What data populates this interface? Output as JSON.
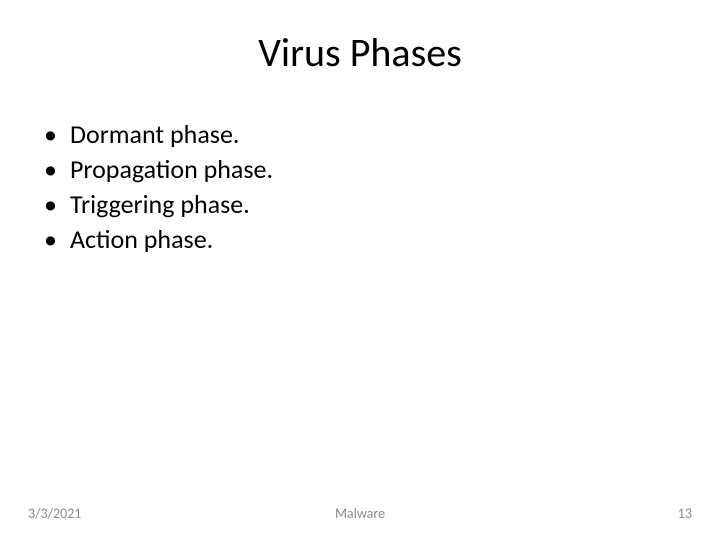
{
  "title": "Virus Phases",
  "title_fontsize": 40,
  "title_color": "#000000",
  "bullets": {
    "items": [
      "Dormant phase.",
      "Propagation phase.",
      "Triggering phase.",
      "Action phase."
    ],
    "fontsize": 26,
    "color": "#000000"
  },
  "footer": {
    "date": "3/3/2021",
    "center": "Malware",
    "page": "13",
    "fontsize": 14,
    "color": "#8a8a8a"
  },
  "background_color": "#ffffff"
}
